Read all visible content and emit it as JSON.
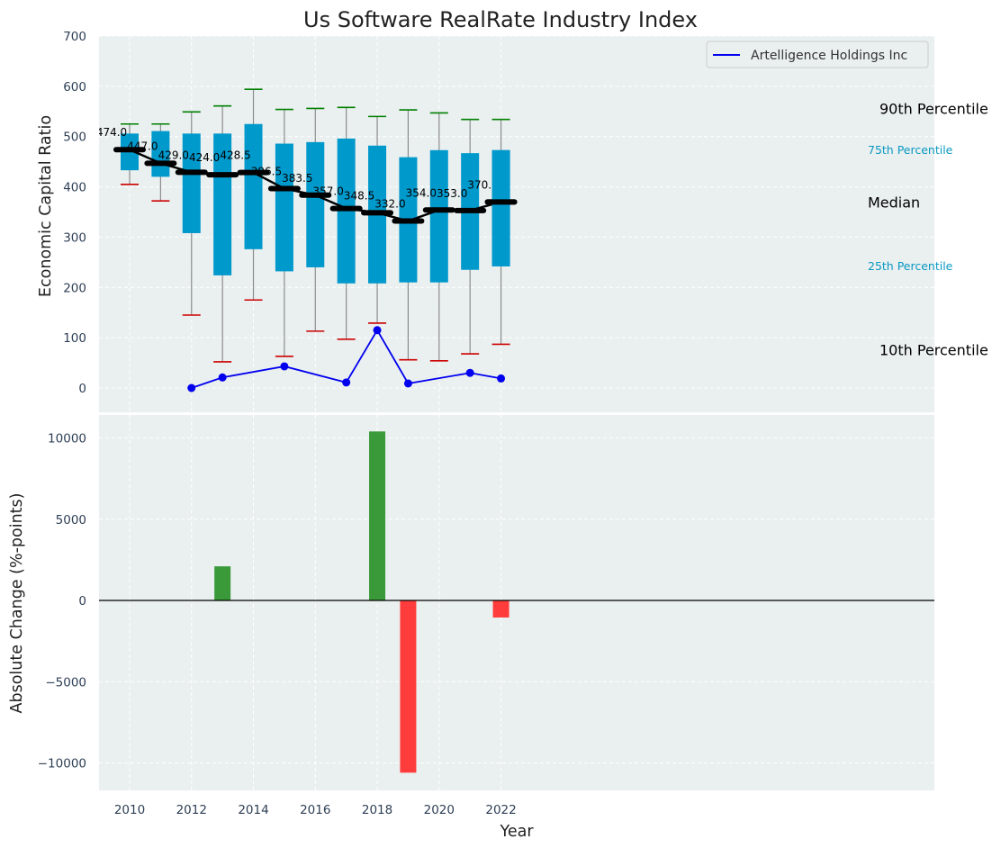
{
  "chart_data": [
    {
      "type": "box",
      "title": "Us Software RealRate Industry Index",
      "ylabel": "Economic Capital Ratio",
      "ylim": [
        -50,
        700
      ],
      "yticks": [
        0,
        100,
        200,
        300,
        400,
        500,
        600,
        700
      ],
      "grid": true,
      "legend_position": "top-right",
      "colors": {
        "box": "#0099cc",
        "whisker": "#8c8c8c",
        "cap_high": "#008000",
        "cap_low": "#cc0000",
        "median": "#000000",
        "company": "#0000ee",
        "background": "#eaeff0",
        "grid": "#ffffff"
      },
      "years": [
        2010,
        2011,
        2012,
        2013,
        2014,
        2015,
        2016,
        2017,
        2018,
        2019,
        2020,
        2021,
        2022
      ],
      "p90": [
        525,
        525,
        549,
        561,
        594,
        554,
        556,
        558,
        540,
        553,
        547,
        534,
        534
      ],
      "p75": [
        506,
        511,
        506,
        506,
        525,
        486,
        489,
        496,
        482,
        459,
        473,
        467,
        473
      ],
      "median": [
        474.0,
        447.0,
        429.0,
        424.0,
        428.5,
        396.5,
        383.5,
        357.0,
        348.5,
        332.0,
        354.0,
        353.0,
        370.0
      ],
      "median_labels": [
        "474.0",
        "447.0",
        "429.0",
        "424.0",
        "428.5",
        "396.5",
        "383.5",
        "357.0",
        "348.5",
        "332.0",
        "354.0",
        "353.0",
        "370.0"
      ],
      "p25": [
        433,
        420,
        308,
        224,
        276,
        232,
        240,
        208,
        208,
        210,
        210,
        235,
        242
      ],
      "p10": [
        405,
        372,
        145,
        52,
        175,
        63,
        113,
        97,
        129,
        56,
        54,
        68,
        87
      ],
      "series": [
        {
          "name": "Artelligence Holdings Inc",
          "x": [
            2012,
            2013,
            2015,
            2017,
            2018,
            2019,
            2021,
            2022
          ],
          "y": [
            0,
            21,
            43,
            11,
            115,
            9,
            30,
            19
          ]
        }
      ],
      "percentile_labels": {
        "p90": "90th Percentile",
        "p75": "75th Percentile",
        "median": "Median",
        "p25": "25th Percentile",
        "p10": "10th Percentile"
      }
    },
    {
      "type": "bar",
      "xlabel": "Year",
      "ylabel": "Absolute Change (%-points)",
      "ylim": [
        -11500,
        11500
      ],
      "yticks": [
        -10000,
        -5000,
        0,
        5000,
        10000
      ],
      "ytick_labels": [
        "−10000",
        "−5000",
        "0",
        "5000",
        "10000"
      ],
      "xlim": [
        2009.5,
        2023
      ],
      "xticks": [
        2010,
        2012,
        2014,
        2016,
        2018,
        2020,
        2022
      ],
      "categories": [
        2013,
        2018,
        2019,
        2022
      ],
      "values": [
        2100,
        10400,
        -10600,
        -1050
      ],
      "colors": {
        "positive": "#3a9a3a",
        "negative": "#ff3c3c",
        "zero_line": "#000000"
      }
    }
  ]
}
